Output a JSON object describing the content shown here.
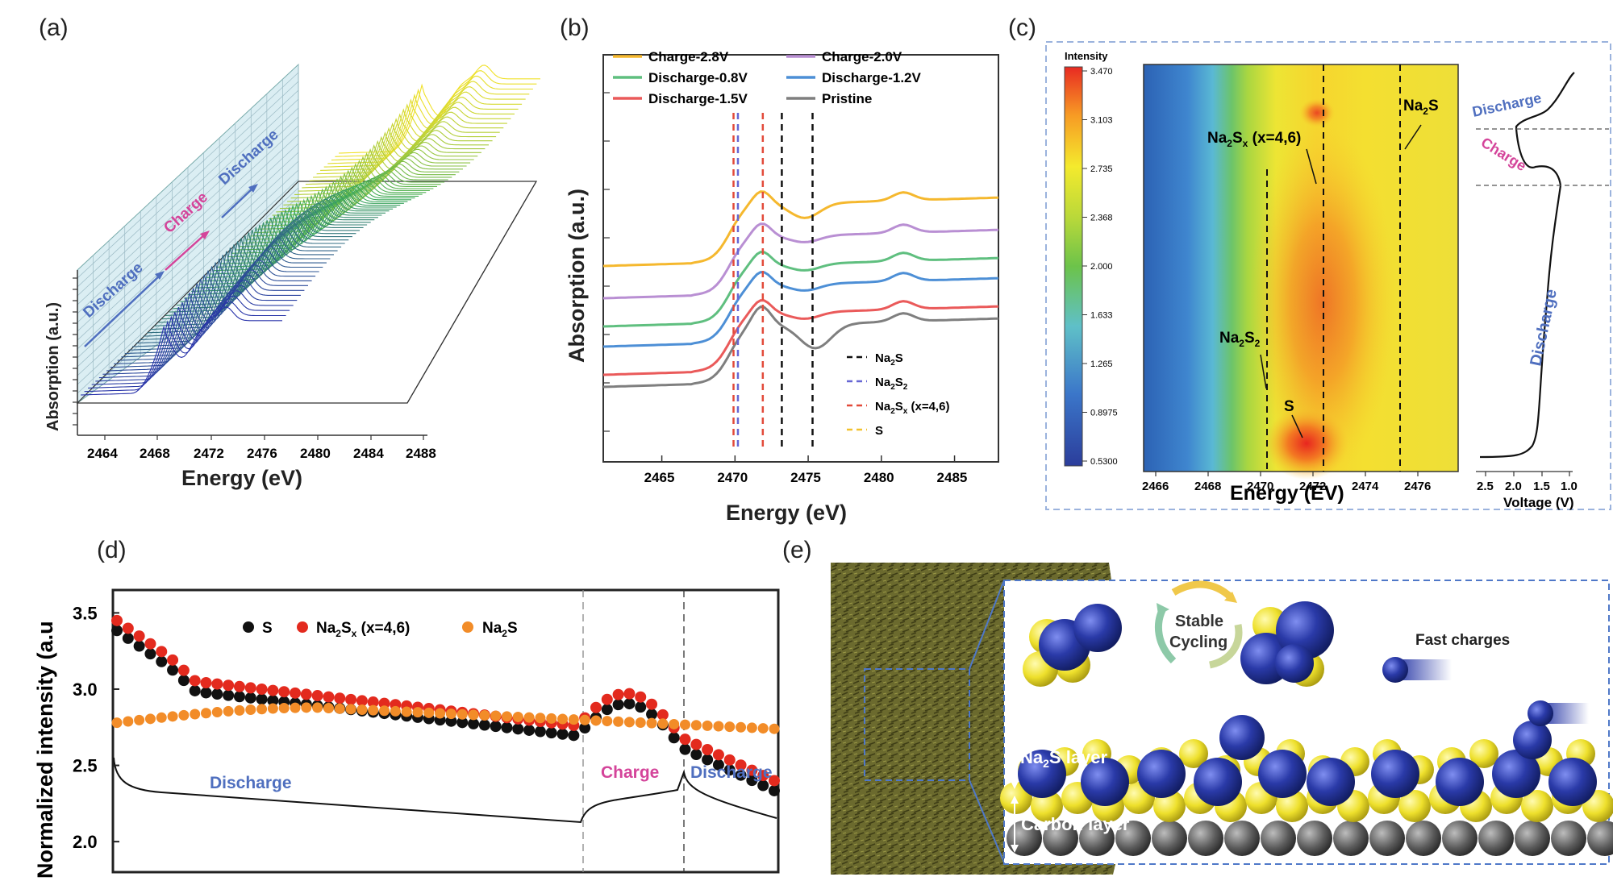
{
  "panels": {
    "a": {
      "letter": "(a)",
      "ylabel": "Absorption (a.u.)",
      "xlabel": "Energy (eV)",
      "xticks": [
        "2464",
        "2468",
        "2472",
        "2476",
        "2480",
        "2484",
        "2488"
      ],
      "wall_labels": [
        "Discharge",
        "Charge",
        "Discharge"
      ]
    },
    "b": {
      "letter": "(b)",
      "ylabel": "Absorption (a.u.)",
      "xlabel": "Energy (eV)",
      "xticks": [
        "2465",
        "2470",
        "2475",
        "2480",
        "2485"
      ],
      "legend": [
        "Charge-2.8V",
        "Charge-2.0V",
        "Discharge-0.8V",
        "Discharge-1.2V",
        "Discharge-1.5V",
        "Pristine"
      ],
      "refs": [
        "Na2S",
        "Na2S2",
        "Na2Sx (x=4,6)",
        "S"
      ]
    },
    "c": {
      "letter": "(c)",
      "colorbar_title": "Intensity",
      "colorbar_ticks": [
        "3.470",
        "3.103",
        "2.735",
        "2.368",
        "2.000",
        "1.633",
        "1.265",
        "0.8975",
        "0.5300"
      ],
      "xticks": [
        "2466",
        "2468",
        "2470",
        "2472",
        "2474",
        "2476"
      ],
      "xlabel": "Energy (EV)",
      "voltage_ticks": [
        "2.5",
        "2.0",
        "1.5",
        "1.0"
      ],
      "voltage_label": "Voltage (V)",
      "annotations": [
        "Na2Sx (x=4,6)",
        "Na2S",
        "Na2S2",
        "S"
      ],
      "side_labels": [
        "Discharge",
        "Charge",
        "Discharge"
      ]
    },
    "d": {
      "letter": "(d)",
      "ylabel": "Normalized intensity (a.u",
      "yticks": [
        "3.5",
        "3.0",
        "2.5",
        "2.0"
      ],
      "legend": [
        "S",
        "Na2Sx (x=4,6)",
        "Na2S"
      ],
      "phases": [
        "Discharge",
        "Charge",
        "Discharge"
      ]
    },
    "e": {
      "letter": "(e)",
      "labels": [
        "Stable",
        "Cycling",
        "Fast charges",
        "Na2S layer",
        "Carbon layer"
      ]
    }
  },
  "colors": {
    "charge28": "#f5b82e",
    "charge20": "#b98fd3",
    "dis08": "#5fbf7f",
    "dis12": "#4d8fd6",
    "dis15": "#ea5a5a",
    "pristine": "#7f7f7f",
    "discharge_text": "#4f6fbf",
    "charge_text": "#d4449a"
  },
  "chart_data": [
    {
      "type": "line",
      "panel": "b",
      "xlabel": "Energy (eV)",
      "ylabel": "Absorption (a.u.)",
      "xlim": [
        2461,
        2488
      ],
      "series": [
        {
          "name": "Charge-2.8V"
        },
        {
          "name": "Charge-2.0V"
        },
        {
          "name": "Discharge-0.8V"
        },
        {
          "name": "Discharge-1.2V"
        },
        {
          "name": "Discharge-1.5V"
        },
        {
          "name": "Pristine"
        }
      ],
      "reference_lines": [
        {
          "name": "Na2S",
          "x": [
            2473.2,
            2475.3
          ]
        },
        {
          "name": "Na2S2",
          "x": [
            2470.2
          ]
        },
        {
          "name": "Na2Sx (x=4,6)",
          "x": [
            2469.9,
            2471.9
          ]
        },
        {
          "name": "S",
          "x": []
        }
      ]
    },
    {
      "type": "scatter",
      "panel": "d",
      "ylabel": "Normalized intensity (a.u",
      "ylim": [
        1.8,
        3.65
      ],
      "series": [
        {
          "name": "S"
        },
        {
          "name": "Na2Sx (x=4,6)"
        },
        {
          "name": "Na2S"
        }
      ]
    }
  ]
}
